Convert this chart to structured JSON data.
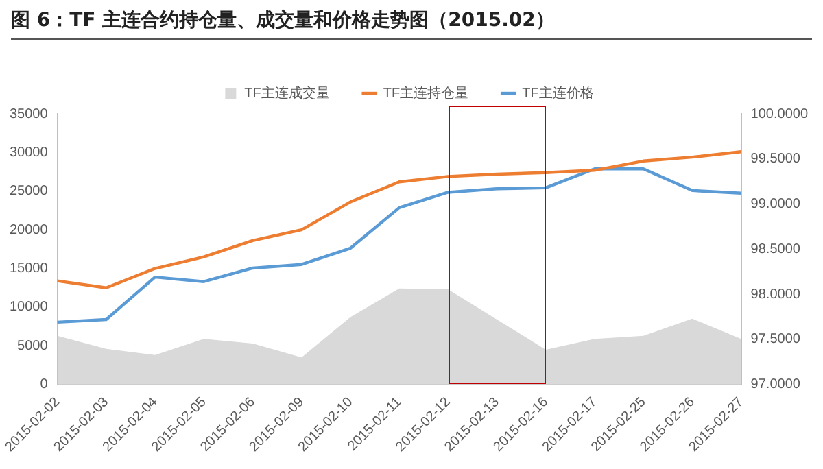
{
  "chart_data": {
    "type": "line",
    "title": "图 6：TF 主连合约持仓量、成交量和价格走势图（2015.02）",
    "categories": [
      "2015-02-02",
      "2015-02-03",
      "2015-02-04",
      "2015-02-05",
      "2015-02-06",
      "2015-02-09",
      "2015-02-10",
      "2015-02-11",
      "2015-02-12",
      "2015-02-13",
      "2015-02-16",
      "2015-02-17",
      "2015-02-25",
      "2015-02-26",
      "2015-02-27"
    ],
    "series": [
      {
        "name": "TF主连成交量",
        "type": "area",
        "color": "#d9d9d9",
        "values": [
          6300,
          4600,
          3800,
          5900,
          5300,
          3500,
          8700,
          12400,
          12300,
          8400,
          4500,
          5900,
          6300,
          8500,
          5900
        ]
      },
      {
        "name": "TF主连持仓量",
        "type": "line",
        "color": "#ed7d31",
        "values": [
          13400,
          12500,
          15000,
          16500,
          18600,
          20000,
          23600,
          26200,
          26900,
          27200,
          27400,
          27700,
          28900,
          29400,
          30100
        ]
      },
      {
        "name": "TF主连价格",
        "type": "line",
        "axis": "y2",
        "color": "#5b9bd5",
        "values": [
          97.69,
          97.72,
          98.19,
          98.14,
          98.29,
          98.33,
          98.51,
          98.96,
          99.13,
          99.17,
          99.18,
          99.39,
          99.39,
          99.15,
          99.12
        ]
      }
    ],
    "ylim": [
      0,
      35000
    ],
    "yticks": [
      0,
      5000,
      10000,
      15000,
      20000,
      25000,
      30000,
      35000
    ],
    "y2lim": [
      97,
      100
    ],
    "y2ticks": [
      {
        "value": 97,
        "label": "97.0000"
      },
      {
        "value": 97.5,
        "label": "97.5000"
      },
      {
        "value": 98,
        "label": "98.0000"
      },
      {
        "value": 98.5,
        "label": "98.5000"
      },
      {
        "value": 99,
        "label": "99.0000"
      },
      {
        "value": 99.5,
        "label": "99.5000"
      },
      {
        "value": 100,
        "label": "100.0000"
      }
    ],
    "grid": false,
    "legend": "top",
    "marker": "none",
    "line_style": "solid"
  }
}
